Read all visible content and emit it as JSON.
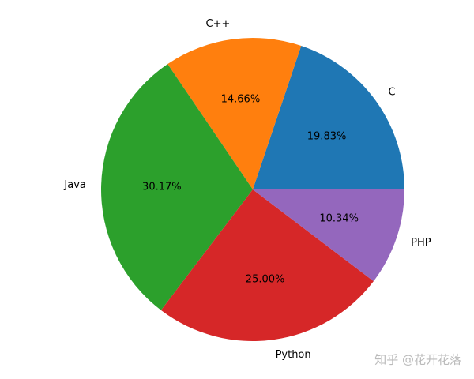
{
  "chart_data": {
    "type": "pie",
    "categories": [
      "C",
      "C++",
      "Java",
      "Python",
      "PHP"
    ],
    "values": [
      19.83,
      14.66,
      30.17,
      25.0,
      10.34
    ],
    "value_labels": [
      "19.83%",
      "14.66%",
      "30.17%",
      "25.00%",
      "10.34%"
    ],
    "colors": [
      "#1f77b4",
      "#ff7f0e",
      "#2ca02c",
      "#d62728",
      "#9467bd"
    ],
    "watermark": "知乎 @花开花落"
  }
}
